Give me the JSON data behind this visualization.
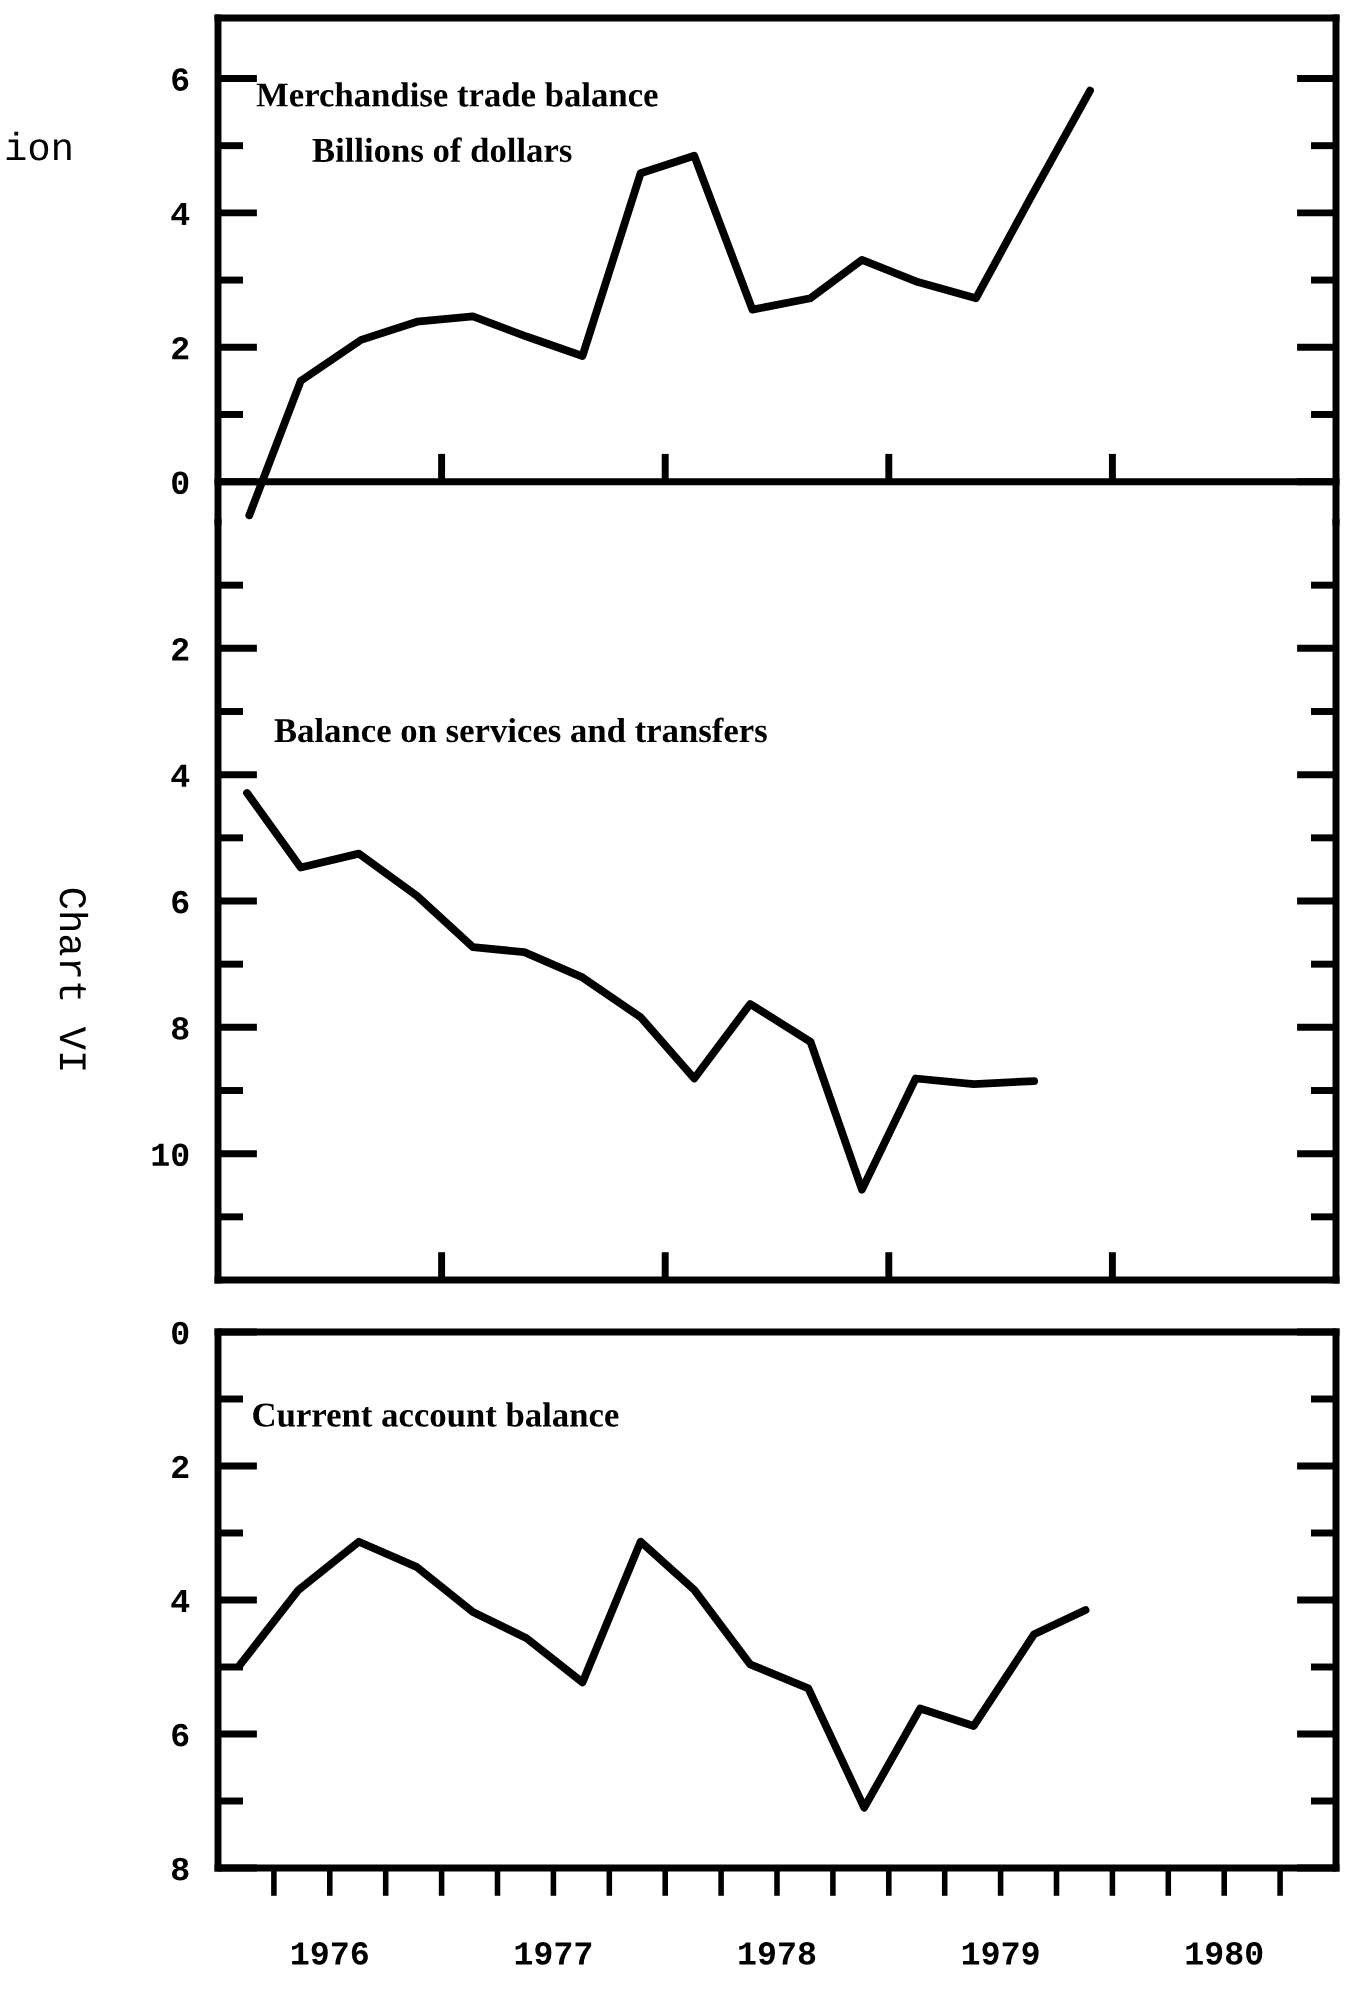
{
  "chart_data": [
    {
      "type": "line",
      "title": "Merchandise trade balance",
      "subtitle": "Billions of dollars",
      "annotations": [
        "Chart VI",
        "ion"
      ],
      "xlim": [
        1976,
        1981
      ],
      "xticks": [
        {
          "value": 1977,
          "label": null
        },
        {
          "value": 1978,
          "label": null
        },
        {
          "value": 1979,
          "label": null
        },
        {
          "value": 1980,
          "label": null
        }
      ],
      "ylim": [
        -0.6,
        6.9
      ],
      "yticks": [
        0,
        {
          "value": 1,
          "label": null
        },
        2,
        {
          "value": 3,
          "label": null
        },
        4,
        {
          "value": 5,
          "label": null
        },
        6
      ],
      "tick_labels": "y",
      "series": [
        {
          "color": "#000000",
          "x": [
            1976.14,
            1976.37,
            1976.64,
            1976.89,
            1977.14,
            1977.38,
            1977.63,
            1977.89,
            1978.13,
            1978.39,
            1978.65,
            1978.88,
            1979.13,
            1979.39,
            1979.64,
            1979.9
          ],
          "values": [
            -0.5,
            1.5,
            2.11,
            2.38,
            2.46,
            2.16,
            1.87,
            4.59,
            4.85,
            2.56,
            2.73,
            3.3,
            2.97,
            2.73,
            4.26,
            5.82
          ]
        }
      ]
    },
    {
      "type": "line",
      "title": "Balance on services and transfers",
      "xlim": [
        1976,
        1981
      ],
      "xticks": [
        {
          "value": 1977,
          "label": null
        },
        {
          "value": 1978,
          "label": null
        },
        {
          "value": 1979,
          "label": null
        },
        {
          "value": 1980,
          "label": null
        }
      ],
      "ylim": [
        12,
        0
      ],
      "yticks": [
        {
          "value": 1,
          "label": null
        },
        2,
        {
          "value": 3,
          "label": null
        },
        4,
        {
          "value": 5,
          "label": null
        },
        6,
        {
          "value": 7,
          "label": null
        },
        8,
        {
          "value": 9,
          "label": null
        },
        10,
        {
          "value": 11,
          "label": null
        }
      ],
      "tick_labels": "y",
      "series": [
        {
          "color": "#000000",
          "x": [
            1976.13,
            1976.37,
            1976.63,
            1976.89,
            1977.14,
            1977.37,
            1977.63,
            1977.89,
            1978.13,
            1978.38,
            1978.65,
            1978.88,
            1979.12,
            1979.38,
            1979.65
          ],
          "values": [
            4.29,
            5.47,
            5.25,
            5.92,
            6.73,
            6.81,
            7.21,
            7.84,
            8.81,
            7.63,
            8.23,
            10.57,
            8.81,
            8.9,
            8.85
          ]
        }
      ]
    },
    {
      "type": "line",
      "title": "Current account balance",
      "xlim": [
        1976,
        1981
      ],
      "xticks": [
        {
          "value": 1976.25,
          "label": null
        },
        {
          "value": 1976.5,
          "label": "1976"
        },
        {
          "value": 1976.75,
          "label": null
        },
        {
          "value": 1977,
          "label": null
        },
        {
          "value": 1977.25,
          "label": null
        },
        {
          "value": 1977.5,
          "label": "1977"
        },
        {
          "value": 1977.75,
          "label": null
        },
        {
          "value": 1978,
          "label": null
        },
        {
          "value": 1978.25,
          "label": null
        },
        {
          "value": 1978.5,
          "label": "1978"
        },
        {
          "value": 1978.75,
          "label": null
        },
        {
          "value": 1979,
          "label": null
        },
        {
          "value": 1979.25,
          "label": null
        },
        {
          "value": 1979.5,
          "label": "1979"
        },
        {
          "value": 1979.75,
          "label": null
        },
        {
          "value": 1980,
          "label": null
        },
        {
          "value": 1980.25,
          "label": null
        },
        {
          "value": 1980.5,
          "label": "1980"
        },
        {
          "value": 1980.75,
          "label": null
        }
      ],
      "ylim": [
        8,
        0
      ],
      "yticks": [
        0,
        {
          "value": 1,
          "label": null
        },
        2,
        {
          "value": 3,
          "label": null
        },
        4,
        {
          "value": 5,
          "label": null
        },
        6,
        {
          "value": 7,
          "label": null
        },
        8
      ],
      "series": [
        {
          "color": "#000000",
          "x": [
            1976.1,
            1976.36,
            1976.63,
            1976.89,
            1977.14,
            1977.38,
            1977.63,
            1977.89,
            1978.13,
            1978.38,
            1978.64,
            1978.89,
            1979.14,
            1979.38,
            1979.65,
            1979.88
          ],
          "values": [
            4.96,
            3.85,
            3.13,
            3.51,
            4.18,
            4.57,
            5.23,
            3.13,
            3.85,
            4.96,
            5.32,
            7.1,
            5.62,
            5.88,
            4.51,
            4.15
          ]
        }
      ]
    }
  ]
}
